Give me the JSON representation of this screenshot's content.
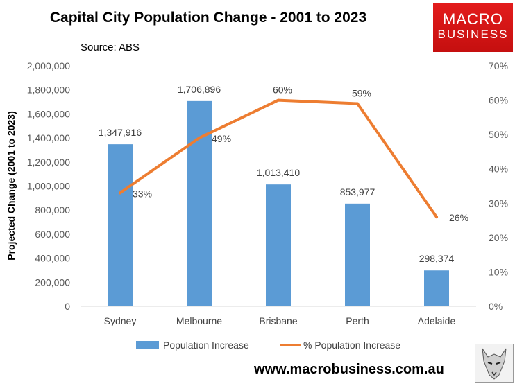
{
  "header": {
    "title": "Capital City Population Change - 2001 to 2023",
    "source": "Source: ABS"
  },
  "logo": {
    "line1": "MACRO",
    "line2": "BUSINESS"
  },
  "footer": {
    "url": "www.macrobusiness.com.au"
  },
  "chart_data": {
    "type": "bar",
    "title": "Capital City Population Change - 2001 to 2023",
    "categories": [
      "Sydney",
      "Melbourne",
      "Brisbane",
      "Perth",
      "Adelaide"
    ],
    "ylabel": "Projected Change (2001 to 2023)",
    "ylim": [
      0,
      2000000
    ],
    "y_ticks": [
      "0",
      "200,000",
      "400,000",
      "600,000",
      "800,000",
      "1,000,000",
      "1,200,000",
      "1,400,000",
      "1,600,000",
      "1,800,000",
      "2,000,000"
    ],
    "y2lim": [
      0,
      70
    ],
    "y2_ticks": [
      "0%",
      "10%",
      "20%",
      "30%",
      "40%",
      "50%",
      "60%",
      "70%"
    ],
    "grid": false,
    "legend_position": "bottom",
    "series": [
      {
        "name": "Population Increase",
        "type": "bar",
        "axis": "left",
        "color": "#5b9bd5",
        "values": [
          1347916,
          1706896,
          1013410,
          853977,
          298374
        ],
        "labels": [
          "1,347,916",
          "1,706,896",
          "1,013,410",
          "853,977",
          "298,374"
        ]
      },
      {
        "name": "% Population Increase",
        "type": "line",
        "axis": "right",
        "color": "#ed7d31",
        "values": [
          33,
          49,
          60,
          59,
          26
        ],
        "labels": [
          "33%",
          "49%",
          "60%",
          "59%",
          "26%"
        ]
      }
    ]
  }
}
